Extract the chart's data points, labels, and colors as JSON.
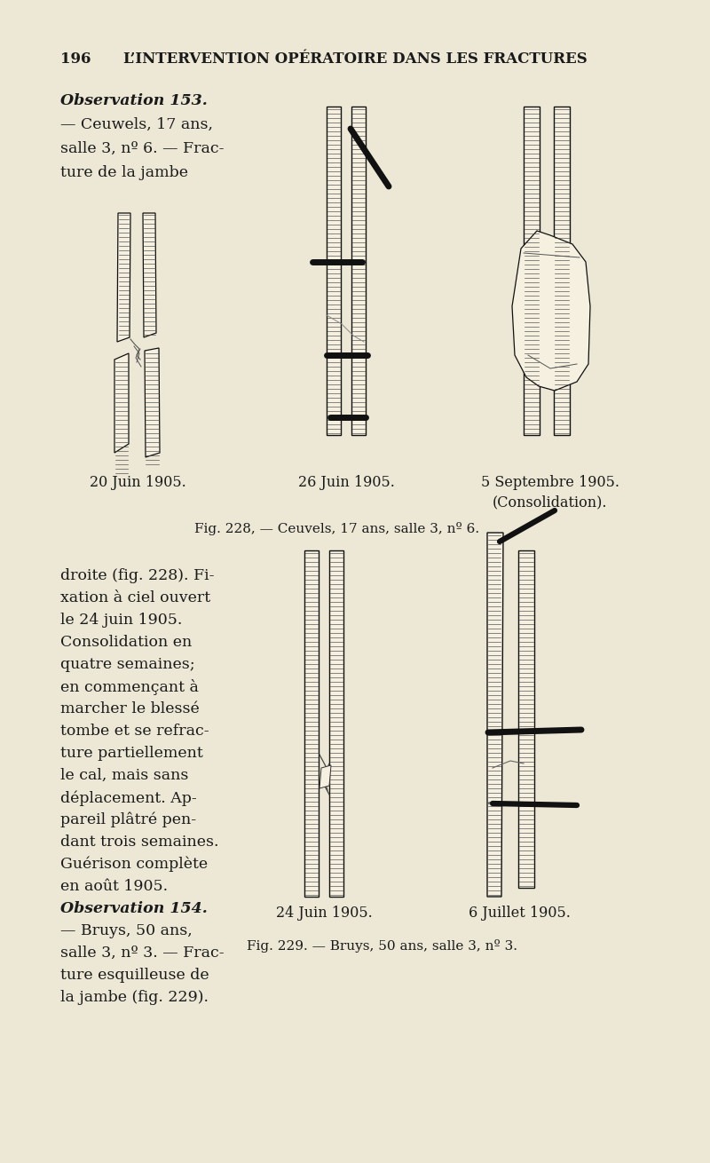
{
  "bg_color": "#EDE8D5",
  "page_number": "196",
  "header_text": "L’INTERVENTION OPÉRATOIRE DANS LES FRACTURES",
  "obs153_text": [
    "Observation 153.",
    "— Ceuwels, 17 ans,",
    "salle 3, nº 6. — Frac-",
    "ture de la jambe"
  ],
  "caption1": "20 Juin 1905.",
  "caption2": "26 Juin 1905.",
  "caption3": "5 Septembre 1905.",
  "caption3b": "(Consolidation).",
  "fig228_caption": "Fig. 228, — Ceuvels, 17 ans, salle 3, nº 6.",
  "bottom_left_text": [
    "droite (fig. 228). Fi-",
    "xation à ciel ouvert",
    "le 24 juin 1905.",
    "Consolidation en",
    "quatre semaines;",
    "en commençant à",
    "marcher le blessé",
    "tombe et se refrac-",
    "ture partiellement",
    "le cal, mais sans",
    "déplacement. Ap-",
    "pareil plâtré pen-",
    "dant trois semaines.",
    "Guérison complète",
    "en août 1905.",
    "Observation 154.",
    "— Bruys, 50 ans,",
    "salle 3, nº 3. — Frac-",
    "ture esquilleuse de",
    "la jambe (fig. 229)."
  ],
  "caption4": "24 Juin 1905.",
  "caption5": "6 Juillet 1905.",
  "fig229_caption": "Fig. 229. — Bruys, 50 ans, salle 3, nº 3.",
  "text_color": "#1a1a1a",
  "line_color": "#111111"
}
